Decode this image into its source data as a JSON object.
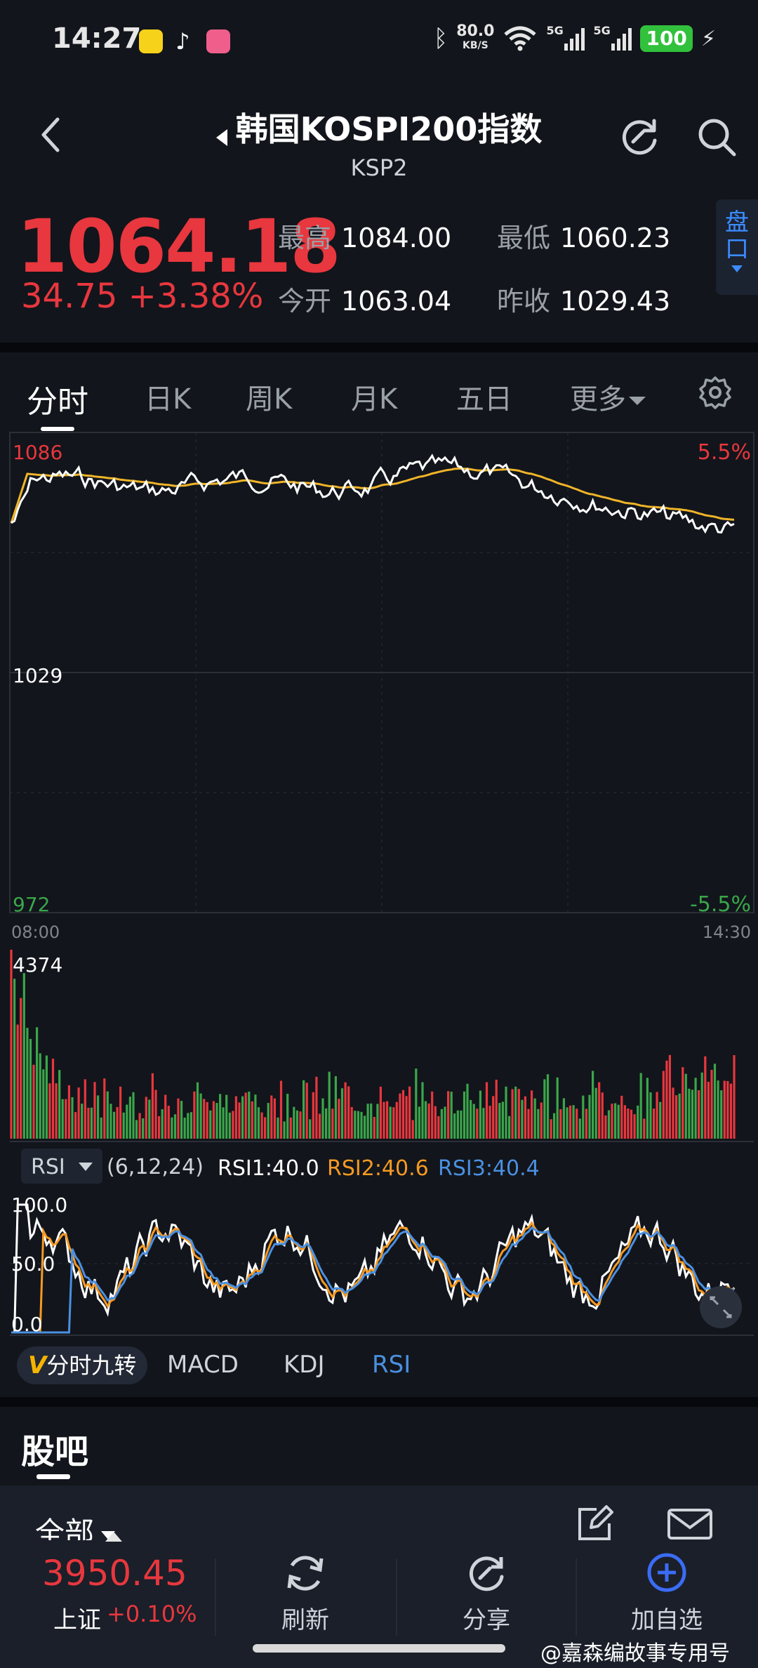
{
  "status": {
    "time": "14:27",
    "net_speed": "80.0",
    "net_unit": "KB/S",
    "sig1": "5G",
    "sig2": "5G",
    "battery": "100"
  },
  "header": {
    "title": "韩国KOSPI200指数",
    "subtitle": "KSP2",
    "icons": [
      "back-icon",
      "refresh-icon",
      "search-icon"
    ]
  },
  "quote": {
    "price": "1064.18",
    "change": "34.75  +3.38%",
    "high_label": "最高",
    "high": "1084.00",
    "low_label": "最低",
    "low": "1060.23",
    "open_label": "今开",
    "open": "1063.04",
    "prev_label": "昨收",
    "prev_close": "1029.43",
    "pankou": "盘口"
  },
  "tabs": [
    "分时",
    "日K",
    "周K",
    "月K",
    "五日",
    "更多"
  ],
  "chart": {
    "y_top": "1086",
    "y_mid": "1029",
    "y_bot": "972",
    "pct_top": "5.5%",
    "pct_bot": "-5.5%",
    "t_start": "08:00",
    "t_end": "14:30",
    "vol_max": "4374",
    "rsi_label": "RSI",
    "rsi_params": "(6,12,24)",
    "rsi1": "RSI1:40.0",
    "rsi2": "RSI2:40.6",
    "rsi3": "RSI3:40.4",
    "rsi_100": "100.0",
    "rsi_50": "50.0",
    "rsi_0": "0.0",
    "colors": {
      "price": "#ffffff",
      "avg": "#f0b429",
      "rsi2": "#f59a23",
      "rsi3": "#4a90e2",
      "up": "#e8373e",
      "down": "#3aa64a"
    }
  },
  "indicators": {
    "jz_v": "V",
    "jz_label": "分时九转",
    "macd": "MACD",
    "kdj": "KDJ",
    "rsi": "RSI"
  },
  "guba": {
    "title": "股吧",
    "filter": "全部"
  },
  "bottom": {
    "index_value": "3950.45",
    "index_name": "上证",
    "index_change": "+0.10%",
    "refresh": "刷新",
    "share": "分享",
    "add": "加自选"
  },
  "watermark": "@嘉森编故事专用号"
}
